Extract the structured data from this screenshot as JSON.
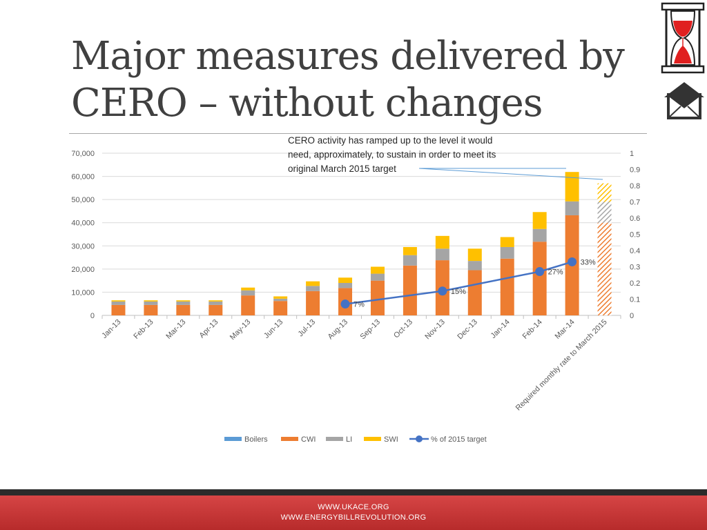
{
  "slide": {
    "title_line1": "Major measures delivered by",
    "title_line2": "CERO – without changes"
  },
  "footer": {
    "line1": "WWW.UKACE.ORG",
    "line2": "WWW.ENERGYBILLREVOLUTION.ORG"
  },
  "logos": {
    "hourglass": "hourglass-icon",
    "house_envelope": "house-envelope-icon"
  },
  "colors": {
    "Boilers": "#5b9bd5",
    "CWI": "#ed7d31",
    "LI": "#a5a5a5",
    "SWI": "#ffc000",
    "target_line": "#4472c4"
  },
  "chart_data": {
    "type": "bar",
    "stacked": true,
    "categories": [
      "Jan-13",
      "Feb-13",
      "Mar-13",
      "Apr-13",
      "May-13",
      "Jun-13",
      "Jul-13",
      "Aug-13",
      "Sep-13",
      "Oct-13",
      "Nov-13",
      "Dec-13",
      "Jan-14",
      "Feb-14",
      "Mar-14",
      "Required monthly rate to March 2015"
    ],
    "series": [
      {
        "name": "Boilers",
        "values": [
          0,
          0,
          0,
          0,
          0,
          0,
          0,
          0,
          0,
          0,
          0,
          0,
          0,
          0,
          0,
          0
        ]
      },
      {
        "name": "CWI",
        "values": [
          4500,
          4500,
          4500,
          4500,
          8600,
          6200,
          10500,
          11800,
          15000,
          21500,
          23800,
          19500,
          24500,
          31800,
          43200,
          40000
        ]
      },
      {
        "name": "LI",
        "values": [
          1500,
          1500,
          1500,
          1500,
          2200,
          1000,
          2200,
          2200,
          3000,
          4500,
          5000,
          4000,
          5000,
          5500,
          6000,
          9000
        ]
      },
      {
        "name": "SWI",
        "values": [
          500,
          500,
          500,
          500,
          1200,
          1000,
          2000,
          2300,
          3000,
          3500,
          5500,
          5300,
          4300,
          7300,
          12700,
          8000
        ]
      }
    ],
    "line_series": {
      "name": "% of 2015 target",
      "axis": "secondary",
      "points": [
        {
          "category": "Aug-13",
          "value": 0.07,
          "label": "7%"
        },
        {
          "category": "Nov-13",
          "value": 0.15,
          "label": "15%"
        },
        {
          "category": "Feb-14",
          "value": 0.27,
          "label": "27%"
        },
        {
          "category": "Mar-14",
          "value": 0.33,
          "label": "33%"
        }
      ]
    },
    "hatched_categories": [
      "Required monthly rate to March 2015"
    ],
    "y_ticks": [
      "0",
      "10,000",
      "20,000",
      "30,000",
      "40,000",
      "50,000",
      "60,000",
      "70,000"
    ],
    "ylim": [
      0,
      70000
    ],
    "y2_ticks": [
      "0",
      "0.1",
      "0.2",
      "0.3",
      "0.4",
      "0.5",
      "0.6",
      "0.7",
      "0.8",
      "0.9",
      "1"
    ],
    "y2lim": [
      0,
      1
    ],
    "legend_entries": [
      "Boilers",
      "CWI",
      "LI",
      "SWI",
      "% of 2015 target"
    ],
    "legend_position": "bottom",
    "grid": true,
    "annotation": {
      "lines": [
        "CERO activity has ramped up to the level it would",
        "need, approximately, to sustain in order to meet its",
        "original March 2015 target"
      ]
    }
  }
}
